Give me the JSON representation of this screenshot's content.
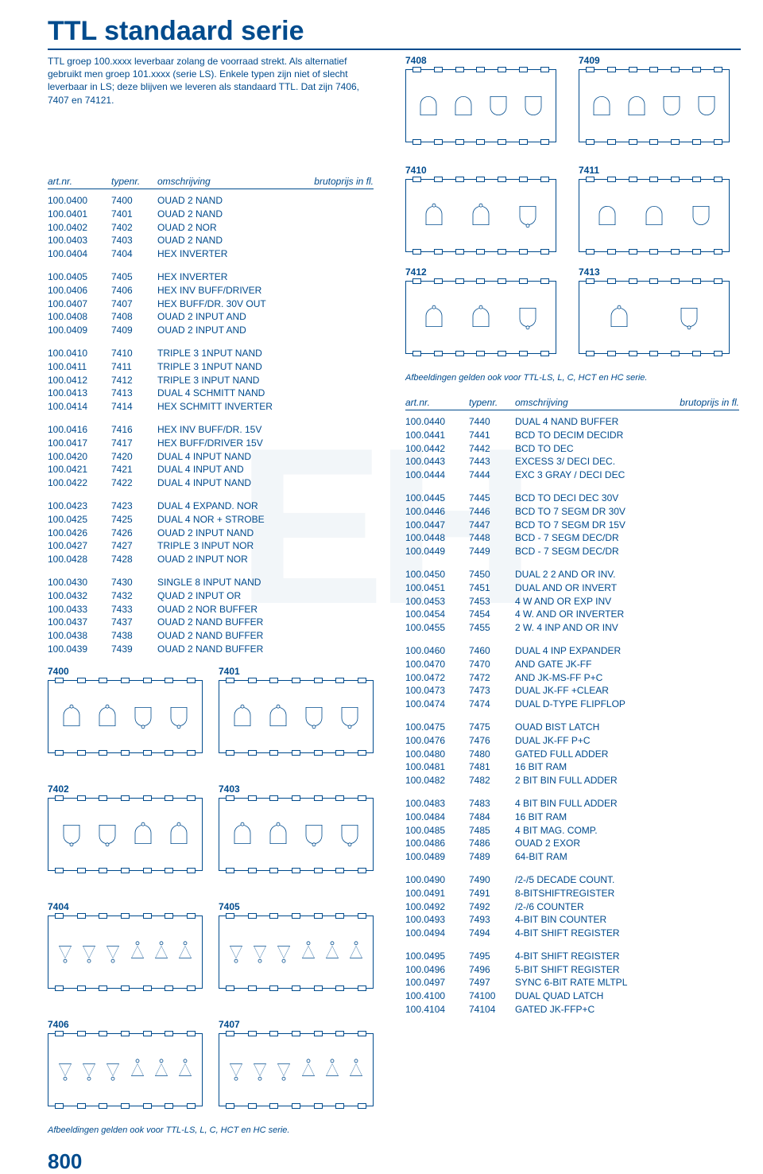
{
  "title": "TTL standaard serie",
  "intro": "TTL groep 100.xxxx leverbaar zolang de voorraad strekt. Als alternatief gebruikt men groep 101.xxxx (serie LS). Enkele typen zijn niet of slecht leverbaar in LS; deze blijven we leveren als standaard TTL. Dat zijn 7406, 7407 en 74121.",
  "headers": {
    "c1": "art.nr.",
    "c2": "typenr.",
    "c3": "omschrijving",
    "c4": "brutoprijs in fl."
  },
  "note": "Afbeeldingen gelden ook voor TTL-LS, L, C, HCT en HC serie.",
  "page": "800",
  "diagram_labels": [
    "7408",
    "7409",
    "7410",
    "7411",
    "7412",
    "7413",
    "7400",
    "7401",
    "7402",
    "7403",
    "7404",
    "7405",
    "7406",
    "7407"
  ],
  "groups_left": [
    [
      {
        "a": "100.0400",
        "t": "7400",
        "d": "OUAD 2 NAND"
      },
      {
        "a": "100.0401",
        "t": "7401",
        "d": "OUAD 2 NAND"
      },
      {
        "a": "100.0402",
        "t": "7402",
        "d": "OUAD 2 NOR"
      },
      {
        "a": "100.0403",
        "t": "7403",
        "d": "OUAD 2 NAND"
      },
      {
        "a": "100.0404",
        "t": "7404",
        "d": "HEX INVERTER"
      }
    ],
    [
      {
        "a": "100.0405",
        "t": "7405",
        "d": "HEX INVERTER"
      },
      {
        "a": "100.0406",
        "t": "7406",
        "d": "HEX INV BUFF/DRIVER"
      },
      {
        "a": "100.0407",
        "t": "7407",
        "d": "HEX BUFF/DR. 30V OUT"
      },
      {
        "a": "100.0408",
        "t": "7408",
        "d": "OUAD 2 INPUT AND"
      },
      {
        "a": "100.0409",
        "t": "7409",
        "d": "OUAD 2 INPUT AND"
      }
    ],
    [
      {
        "a": "100.0410",
        "t": "7410",
        "d": "TRIPLE 3 1NPUT NAND"
      },
      {
        "a": "100.0411",
        "t": "7411",
        "d": "TRIPLE 3 1NPUT NAND"
      },
      {
        "a": "100.0412",
        "t": "7412",
        "d": "TRIPLE 3 INPUT NAND"
      },
      {
        "a": "100.0413",
        "t": "7413",
        "d": "DUAL 4 SCHMITT NAND"
      },
      {
        "a": "100.0414",
        "t": "7414",
        "d": "HEX SCHMITT INVERTER"
      }
    ],
    [
      {
        "a": "100.0416",
        "t": "7416",
        "d": "HEX INV BUFF/DR. 15V"
      },
      {
        "a": "100.0417",
        "t": "7417",
        "d": "HEX BUFF/DRIVER 15V"
      },
      {
        "a": "100.0420",
        "t": "7420",
        "d": "DUAL 4 INPUT NAND"
      },
      {
        "a": "100.0421",
        "t": "7421",
        "d": "DUAL 4 INPUT AND"
      },
      {
        "a": "100.0422",
        "t": "7422",
        "d": "DUAL 4 INPUT NAND"
      }
    ],
    [
      {
        "a": "100.0423",
        "t": "7423",
        "d": "DUAL 4 EXPAND. NOR"
      },
      {
        "a": "100.0425",
        "t": "7425",
        "d": "DUAL 4 NOR + STROBE"
      },
      {
        "a": "100.0426",
        "t": "7426",
        "d": "OUAD 2 INPUT NAND"
      },
      {
        "a": "100.0427",
        "t": "7427",
        "d": "TRIPLE 3 INPUT NOR"
      },
      {
        "a": "100.0428",
        "t": "7428",
        "d": "OUAD 2 INPUT NOR"
      }
    ],
    [
      {
        "a": "100.0430",
        "t": "7430",
        "d": "SINGLE 8 INPUT NAND"
      },
      {
        "a": "100.0432",
        "t": "7432",
        "d": "QUAD 2 INPUT OR"
      },
      {
        "a": "100.0433",
        "t": "7433",
        "d": "OUAD 2 NOR BUFFER"
      },
      {
        "a": "100.0437",
        "t": "7437",
        "d": "OUAD 2 NAND BUFFER"
      },
      {
        "a": "100.0438",
        "t": "7438",
        "d": "OUAD 2 NAND BUFFER"
      },
      {
        "a": "100.0439",
        "t": "7439",
        "d": "OUAD 2 NAND BUFFER"
      }
    ]
  ],
  "groups_right": [
    [
      {
        "a": "100.0440",
        "t": "7440",
        "d": "DUAL 4 NAND BUFFER"
      },
      {
        "a": "100.0441",
        "t": "7441",
        "d": "BCD TO DECIM DECIDR"
      },
      {
        "a": "100.0442",
        "t": "7442",
        "d": "BCD TO DEC"
      },
      {
        "a": "100.0443",
        "t": "7443",
        "d": "EXCESS 3/ DECI DEC."
      },
      {
        "a": "100.0444",
        "t": "7444",
        "d": "EXC 3 GRAY / DECI DEC"
      }
    ],
    [
      {
        "a": "100.0445",
        "t": "7445",
        "d": "BCD TO DECI DEC 30V"
      },
      {
        "a": "100.0446",
        "t": "7446",
        "d": "BCD TO 7 SEGM DR 30V"
      },
      {
        "a": "100.0447",
        "t": "7447",
        "d": "BCD TO 7 SEGM DR 15V"
      },
      {
        "a": "100.0448",
        "t": "7448",
        "d": "BCD - 7 SEGM DEC/DR"
      },
      {
        "a": "100.0449",
        "t": "7449",
        "d": "BCD - 7 SEGM DEC/DR"
      }
    ],
    [
      {
        "a": "100.0450",
        "t": "7450",
        "d": "DUAL 2 2 AND OR INV."
      },
      {
        "a": "100.0451",
        "t": "7451",
        "d": "DUAL AND OR INVERT"
      },
      {
        "a": "100.0453",
        "t": "7453",
        "d": "4 W AND OR EXP INV"
      },
      {
        "a": "100.0454",
        "t": "7454",
        "d": "4 W. AND OR INVERTER"
      },
      {
        "a": "100.0455",
        "t": "7455",
        "d": "2 W. 4 INP AND OR INV"
      }
    ],
    [
      {
        "a": "100.0460",
        "t": "7460",
        "d": "DUAL 4 INP EXPANDER"
      },
      {
        "a": "100.0470",
        "t": "7470",
        "d": "AND GATE JK-FF"
      },
      {
        "a": "100.0472",
        "t": "7472",
        "d": "AND JK-MS-FF P+C"
      },
      {
        "a": "100.0473",
        "t": "7473",
        "d": "DUAL JK-FF +CLEAR"
      },
      {
        "a": "100.0474",
        "t": "7474",
        "d": "DUAL D-TYPE FLIPFLOP"
      }
    ],
    [
      {
        "a": "100.0475",
        "t": "7475",
        "d": "OUAD BIST LATCH"
      },
      {
        "a": "100.0476",
        "t": "7476",
        "d": "DUAL JK-FF P+C"
      },
      {
        "a": "100.0480",
        "t": "7480",
        "d": "GATED FULL ADDER"
      },
      {
        "a": "100.0481",
        "t": "7481",
        "d": "16 BIT RAM"
      },
      {
        "a": "100.0482",
        "t": "7482",
        "d": "2 BIT BIN FULL ADDER"
      }
    ],
    [
      {
        "a": "100.0483",
        "t": "7483",
        "d": "4 BIT BIN FULL ADDER"
      },
      {
        "a": "100.0484",
        "t": "7484",
        "d": "16 BIT RAM"
      },
      {
        "a": "100.0485",
        "t": "7485",
        "d": "4 BIT MAG. COMP."
      },
      {
        "a": "100.0486",
        "t": "7486",
        "d": "OUAD 2 EXOR"
      },
      {
        "a": "100.0489",
        "t": "7489",
        "d": "64-BIT RAM"
      }
    ],
    [
      {
        "a": "100.0490",
        "t": "7490",
        "d": "/2-/5 DECADE COUNT."
      },
      {
        "a": "100.0491",
        "t": "7491",
        "d": "8-BITSHIFTREGISTER"
      },
      {
        "a": "100.0492",
        "t": "7492",
        "d": "/2-/6 COUNTER"
      },
      {
        "a": "100.0493",
        "t": "7493",
        "d": "4-BIT BIN COUNTER"
      },
      {
        "a": "100.0494",
        "t": "7494",
        "d": "4-BIT SHIFT REGISTER"
      }
    ],
    [
      {
        "a": "100.0495",
        "t": "7495",
        "d": "4-BIT SHIFT REGISTER"
      },
      {
        "a": "100.0496",
        "t": "7496",
        "d": "5-BIT SHIFT REGISTER"
      },
      {
        "a": "100.0497",
        "t": "7497",
        "d": "SYNC 6-BIT RATE MLTPL"
      },
      {
        "a": "100.4100",
        "t": "74100",
        "d": "DUAL QUAD LATCH"
      },
      {
        "a": "100.4104",
        "t": "74104",
        "d": "GATED JK-FFP+C"
      }
    ]
  ]
}
